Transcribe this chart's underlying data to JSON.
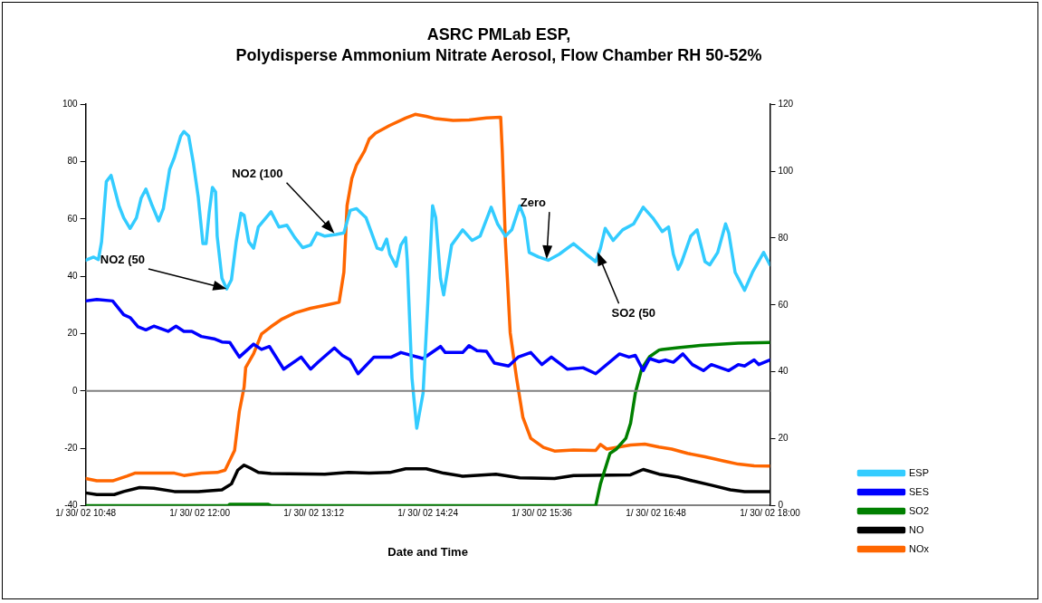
{
  "chart_data": {
    "type": "line",
    "title": "ASRC PMLab ESP,",
    "subtitle": "Polydisperse Ammonium Nitrate Aerosol, Flow Chamber RH 50-52%",
    "xlabel": "Date and Time",
    "xlim": [
      "--01-30T10:48",
      "--01-30T18:00"
    ],
    "xticks": [
      {
        "value": "--01-30T10:48",
        "label": "1/ 30/ 02 10:48"
      },
      {
        "value": "--01-30T12:00",
        "label": "1/ 30/ 02 12:00"
      },
      {
        "value": "--01-30T13:12",
        "label": "1/ 30/ 02 13:12"
      },
      {
        "value": "--01-30T14:24",
        "label": "1/ 30/ 02 14:24"
      },
      {
        "value": "--01-30T15:36",
        "label": "1/ 30/ 02 15:36"
      },
      {
        "value": "--01-30T16:48",
        "label": "1/ 30/ 02 16:48"
      },
      {
        "value": "--01-30T18:00",
        "label": "1/ 30/ 02 18:00"
      }
    ],
    "ylim": [
      -40,
      100
    ],
    "yticks": [
      -40,
      -20,
      0,
      20,
      40,
      60,
      80,
      100
    ],
    "y2lim": [
      0,
      120
    ],
    "y2ticks": [
      0,
      20,
      40,
      60,
      80,
      100,
      120
    ],
    "grid": false,
    "legend": "right",
    "marker": "none",
    "line_style": "solid",
    "ref_lines": [
      {
        "axis": "y",
        "value": 0,
        "color": "#808080"
      }
    ],
    "annotations": [
      {
        "text": "NO2 (50",
        "x": "--01-30T12:17",
        "y": 35.6
      },
      {
        "text": "NO2 (100",
        "x": "--01-30T13:25",
        "y": 55
      },
      {
        "text": "Zero",
        "x": "--01-30T15:39",
        "y": 46
      },
      {
        "text": "SO2 (50",
        "x": "--01-30T16:11",
        "y": 48.5
      }
    ],
    "series": [
      {
        "name": "ESP",
        "color": "#33ccff",
        "x": [
          "--01-30T10:48",
          "--01-30T10:53",
          "--01-30T10:56",
          "--01-30T10:58",
          "--01-30T11:01",
          "--01-30T11:04",
          "--01-30T11:09",
          "--01-30T11:12",
          "--01-30T11:16",
          "--01-30T11:20",
          "--01-30T11:23",
          "--01-30T11:26",
          "--01-30T11:30",
          "--01-30T11:34",
          "--01-30T11:37",
          "--01-30T11:41",
          "--01-30T11:44",
          "--01-30T11:48",
          "--01-30T11:50",
          "--01-30T11:53",
          "--01-30T11:56",
          "--01-30T11:59",
          "--01-30T12:02",
          "--01-30T12:04",
          "--01-30T12:06",
          "--01-30T12:08",
          "--01-30T12:10",
          "--01-30T12:11",
          "--01-30T12:14",
          "--01-30T12:17",
          "--01-30T12:20",
          "--01-30T12:23",
          "--01-30T12:26",
          "--01-30T12:28",
          "--01-30T12:31",
          "--01-30T12:34",
          "--01-30T12:37",
          "--01-30T12:45",
          "--01-30T12:50",
          "--01-30T12:55",
          "--01-30T13:00",
          "--01-30T13:05",
          "--01-30T13:10",
          "--01-30T13:14",
          "--01-30T13:19",
          "--01-30T13:26",
          "--01-30T13:31",
          "--01-30T13:35",
          "--01-30T13:39",
          "--01-30T13:45",
          "--01-30T13:52",
          "--01-30T13:55",
          "--01-30T13:58",
          "--01-30T14:00",
          "--01-30T14:04",
          "--01-30T14:07",
          "--01-30T14:10",
          "--01-30T14:11",
          "--01-30T14:14",
          "--01-30T14:17",
          "--01-30T14:21",
          "--01-30T14:24",
          "--01-30T14:27",
          "--01-30T14:29",
          "--01-30T14:32",
          "--01-30T14:34",
          "--01-30T14:39",
          "--01-30T14:46",
          "--01-30T14:52",
          "--01-30T14:57",
          "--01-30T15:04",
          "--01-30T15:08",
          "--01-30T15:13",
          "--01-30T15:17",
          "--01-30T15:22",
          "--01-30T15:25",
          "--01-30T15:28",
          "--01-30T15:34",
          "--01-30T15:40",
          "--01-30T15:47",
          "--01-30T15:56",
          "--01-30T16:04",
          "--01-30T16:10",
          "--01-30T16:13",
          "--01-30T16:16",
          "--01-30T16:21",
          "--01-30T16:27",
          "--01-30T16:34",
          "--01-30T16:40",
          "--01-30T16:46",
          "--01-30T16:52",
          "--01-30T16:56",
          "--01-30T16:59",
          "--01-30T17:02",
          "--01-30T17:04",
          "--01-30T17:10",
          "--01-30T17:14",
          "--01-30T17:19",
          "--01-30T17:22",
          "--01-30T17:27",
          "--01-30T17:32",
          "--01-30T17:34",
          "--01-30T17:38",
          "--01-30T17:44",
          "--01-30T17:49",
          "--01-30T17:56",
          "--01-30T18:00"
        ],
        "values": [
          45.6,
          46.7,
          45.8,
          52,
          73,
          75.2,
          64.6,
          60.4,
          56.7,
          60.4,
          67.3,
          70.4,
          64.6,
          59.3,
          63.6,
          77.3,
          81.5,
          88.9,
          90.5,
          88.9,
          79.4,
          67.8,
          51.4,
          51.4,
          62.5,
          71,
          69.4,
          54,
          39.3,
          35.6,
          38.8,
          52,
          62,
          61.3,
          52,
          49.8,
          57.2,
          62.5,
          57.2,
          57.8,
          53.5,
          50,
          50.9,
          55.1,
          54,
          54.6,
          55.1,
          63,
          63.6,
          60.4,
          49.8,
          49.3,
          53,
          47.7,
          43.5,
          50.9,
          53.5,
          45.6,
          4.4,
          -13,
          -0.8,
          30.8,
          64.6,
          60.4,
          39.3,
          33.5,
          50.9,
          56.2,
          52.5,
          54,
          64.1,
          58.3,
          54,
          56.2,
          64.6,
          60.4,
          48.3,
          46.7,
          45.6,
          47.7,
          51.4,
          47.7,
          45.1,
          49.8,
          56.7,
          52.5,
          56.2,
          58.3,
          64.1,
          60.4,
          55.6,
          57.2,
          47.7,
          42.4,
          44.6,
          54,
          56.2,
          45.1,
          44,
          48.3,
          58.3,
          55.1,
          41.4,
          35.1,
          41.4,
          48.3,
          44
        ]
      },
      {
        "name": "SES",
        "color": "#0000ff",
        "x": [
          "--01-30T10:48",
          "--01-30T10:55",
          "--01-30T11:05",
          "--01-30T11:12",
          "--01-30T11:16",
          "--01-30T11:21",
          "--01-30T11:26",
          "--01-30T11:31",
          "--01-30T11:40",
          "--01-30T11:45",
          "--01-30T11:50",
          "--01-30T11:55",
          "--01-30T12:01",
          "--01-30T12:09",
          "--01-30T12:14",
          "--01-30T12:19",
          "--01-30T12:25",
          "--01-30T12:34",
          "--01-30T12:39",
          "--01-30T12:44",
          "--01-30T12:53",
          "--01-30T13:04",
          "--01-30T13:10",
          "--01-30T13:15",
          "--01-30T13:25",
          "--01-30T13:30",
          "--01-30T13:35",
          "--01-30T13:40",
          "--01-30T13:50",
          "--01-30T14:01",
          "--01-30T14:07",
          "--01-30T14:21",
          "--01-30T14:32",
          "--01-30T14:35",
          "--01-30T14:46",
          "--01-30T14:50",
          "--01-30T14:55",
          "--01-30T15:01",
          "--01-30T15:06",
          "--01-30T15:15",
          "--01-30T15:21",
          "--01-30T15:29",
          "--01-30T15:36",
          "--01-30T15:42",
          "--01-30T15:52",
          "--01-30T16:02",
          "--01-30T16:10",
          "--01-30T16:25",
          "--01-30T16:31",
          "--01-30T16:35",
          "--01-30T16:40",
          "--01-30T16:44",
          "--01-30T16:50",
          "--01-30T16:54",
          "--01-30T16:59",
          "--01-30T17:05",
          "--01-30T17:11",
          "--01-30T17:18",
          "--01-30T17:23",
          "--01-30T17:34",
          "--01-30T17:40",
          "--01-30T17:44",
          "--01-30T17:50",
          "--01-30T17:53",
          "--01-30T18:00"
        ],
        "values": [
          31.4,
          31.9,
          31.4,
          26.6,
          25.6,
          22.4,
          21.3,
          22.6,
          20.8,
          22.6,
          20.8,
          20.8,
          19,
          18.2,
          17.1,
          16.9,
          11.8,
          16.3,
          14.5,
          15.5,
          7.6,
          11.8,
          7.6,
          10.2,
          15,
          12.4,
          10.8,
          6,
          11.8,
          11.8,
          13.4,
          11.3,
          15.5,
          13.4,
          13.4,
          15.8,
          14.1,
          13.8,
          9.7,
          8.7,
          11.8,
          13.4,
          9.2,
          11.8,
          7.6,
          8.1,
          6,
          12.9,
          11.8,
          12.4,
          7.1,
          11.3,
          10.2,
          10.8,
          10,
          12.9,
          9.2,
          7.1,
          9.2,
          7.1,
          9.2,
          8.7,
          10.8,
          9.2,
          10.8
        ]
      },
      {
        "name": "SO2",
        "color": "#008000",
        "axis": "y2",
        "x": [
          "--01-30T10:48",
          "--01-30T12:18",
          "--01-30T12:19",
          "--01-30T12:43",
          "--01-30T12:45",
          "--01-30T16:10",
          "--01-30T16:13",
          "--01-30T16:19",
          "--01-30T16:23",
          "--01-30T16:29",
          "--01-30T16:32",
          "--01-30T16:35",
          "--01-30T16:39",
          "--01-30T16:44",
          "--01-30T16:50",
          "--01-30T16:52",
          "--01-30T17:02",
          "--01-30T17:16",
          "--01-30T17:40",
          "--01-30T18:00"
        ],
        "values": [
          0,
          0,
          0.4,
          0.4,
          0,
          0,
          6.5,
          15.6,
          16.9,
          20.1,
          24.6,
          33.6,
          40.9,
          44.5,
          46.5,
          46.7,
          47.2,
          47.9,
          48.6,
          48.8
        ]
      },
      {
        "name": "NO",
        "color": "#000000",
        "axis": "y2",
        "x": [
          "--01-30T10:48",
          "--01-30T10:55",
          "--01-30T11:06",
          "--01-30T11:12",
          "--01-30T11:22",
          "--01-30T11:31",
          "--01-30T11:44",
          "--01-30T11:59",
          "--01-30T12:14",
          "--01-30T12:20",
          "--01-30T12:24",
          "--01-30T12:28",
          "--01-30T12:32",
          "--01-30T12:37",
          "--01-30T12:45",
          "--01-30T13:19",
          "--01-30T13:28",
          "--01-30T13:34",
          "--01-30T13:47",
          "--01-30T14:00",
          "--01-30T14:10",
          "--01-30T14:23",
          "--01-30T14:34",
          "--01-30T14:46",
          "--01-30T15:07",
          "--01-30T15:22",
          "--01-30T15:44",
          "--01-30T15:56",
          "--01-30T16:32",
          "--01-30T16:40",
          "--01-30T16:50",
          "--01-30T17:02",
          "--01-30T17:11",
          "--01-30T17:23",
          "--01-30T17:35",
          "--01-30T17:44",
          "--01-30T18:00"
        ],
        "values": [
          3.8,
          3.3,
          3.3,
          4.2,
          5.4,
          5.2,
          4.2,
          4.2,
          4.7,
          6.5,
          10.6,
          12.1,
          11.2,
          9.9,
          9.6,
          9.4,
          9.7,
          9.9,
          9.7,
          9.9,
          11,
          11,
          9.7,
          8.8,
          9.4,
          8.3,
          8.1,
          9,
          9.2,
          10.8,
          9.4,
          8.5,
          7.4,
          6.1,
          4.7,
          4.2,
          4.2
        ]
      },
      {
        "name": "NOx",
        "color": "#ff6600",
        "axis": "y2",
        "x": [
          "--01-30T10:48",
          "--01-30T10:55",
          "--01-30T11:05",
          "--01-30T11:14",
          "--01-30T11:19",
          "--01-30T11:44",
          "--01-30T11:50",
          "--01-30T12:01",
          "--01-30T12:11",
          "--01-30T12:16",
          "--01-30T12:22",
          "--01-30T12:25",
          "--01-30T12:28",
          "--01-30T12:29",
          "--01-30T12:34",
          "--01-30T12:39",
          "--01-30T12:45",
          "--01-30T12:52",
          "--01-30T13:00",
          "--01-30T13:10",
          "--01-30T13:19",
          "--01-30T13:28",
          "--01-30T13:31",
          "--01-30T13:33",
          "--01-30T13:36",
          "--01-30T13:39",
          "--01-30T13:44",
          "--01-30T13:47",
          "--01-30T13:51",
          "--01-30T14:00",
          "--01-30T14:10",
          "--01-30T14:16",
          "--01-30T14:23",
          "--01-30T14:29",
          "--01-30T14:40",
          "--01-30T14:50",
          "--01-30T15:01",
          "--01-30T15:10",
          "--01-30T15:11",
          "--01-30T15:13",
          "--01-30T15:16",
          "--01-30T15:20",
          "--01-30T15:24",
          "--01-30T15:29",
          "--01-30T15:37",
          "--01-30T15:44",
          "--01-30T15:56",
          "--01-30T16:10",
          "--01-30T16:13",
          "--01-30T16:17",
          "--01-30T16:32",
          "--01-30T16:41",
          "--01-30T16:50",
          "--01-30T16:58",
          "--01-30T17:08",
          "--01-30T17:19",
          "--01-30T17:31",
          "--01-30T17:40",
          "--01-30T17:50",
          "--01-30T18:00"
        ],
        "values": [
          8.1,
          7.4,
          7.4,
          8.8,
          9.7,
          9.7,
          9,
          9.7,
          9.9,
          10.6,
          16.5,
          28.2,
          35.4,
          41.3,
          45.4,
          51.3,
          53.5,
          55.8,
          57.6,
          59,
          59.9,
          60.8,
          69.8,
          89.7,
          97.8,
          101.9,
          106,
          109.6,
          111.4,
          113.7,
          115.9,
          117,
          116.4,
          115.7,
          115.2,
          115.3,
          115.9,
          116.1,
          106,
          78.8,
          51.7,
          38.2,
          26.4,
          20.1,
          17.4,
          16.3,
          16.6,
          16.5,
          18.3,
          16.9,
          18.1,
          18.4,
          17.5,
          16.9,
          15.6,
          14.6,
          13.3,
          12.4,
          11.9,
          11.8
        ]
      }
    ]
  }
}
